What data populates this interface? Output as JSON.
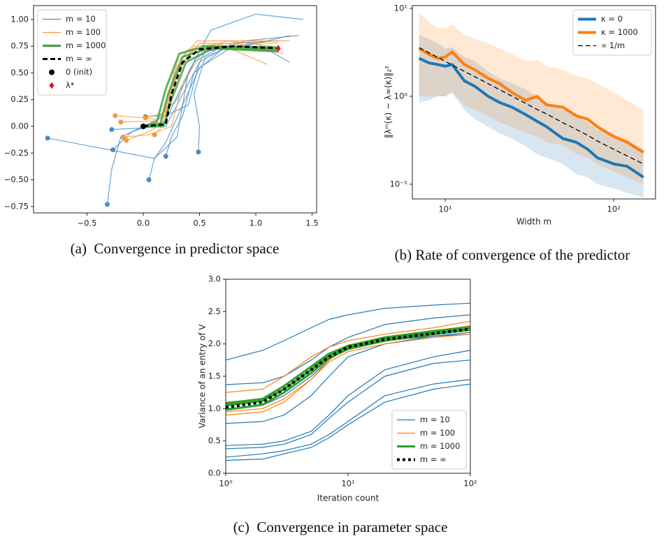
{
  "chart_data": [
    {
      "type": "line",
      "caption": "(a)  Convergence in predictor space",
      "xlim": [
        -0.975,
        1.54
      ],
      "ylim": [
        -0.81,
        1.13
      ],
      "xticks": [
        {
          "value": -0.5,
          "label": "−0.5"
        },
        {
          "value": 0,
          "label": "0.0"
        },
        0.5,
        {
          "value": 1,
          "label": "1.0"
        },
        1.5
      ],
      "yticks": [
        {
          "value": -0.75,
          "label": "−0.75"
        },
        {
          "value": -0.5,
          "label": "−0.50"
        },
        {
          "value": -0.25,
          "label": "−0.25"
        },
        {
          "value": 0,
          "label": "0.00"
        },
        0.25,
        {
          "value": 0.5,
          "label": "0.50"
        },
        0.75,
        {
          "value": 1,
          "label": "1.00"
        }
      ],
      "legend": "upper left",
      "series": [
        {
          "name": "m = 10",
          "color": "#4a8cc4",
          "linewidth": 1.2,
          "markers": "start",
          "lines": [
            {
              "x": [
                -0.85,
                -0.4,
                0.1,
                0.3,
                0.4,
                0.6,
                1.0,
                1.42
              ],
              "y": [
                -0.11,
                -0.2,
                -0.3,
                -0.1,
                0.5,
                0.9,
                1.05,
                1.0
              ]
            },
            {
              "x": [
                -0.32,
                -0.28,
                -0.2,
                0.1,
                0.4,
                0.5,
                0.8,
                1.2
              ],
              "y": [
                -0.73,
                -0.4,
                -0.1,
                0.05,
                0.2,
                0.6,
                0.78,
                0.8
              ]
            },
            {
              "x": [
                -0.27,
                -0.1,
                0.2,
                0.35,
                0.5,
                0.9,
                1.3
              ],
              "y": [
                -0.22,
                -0.05,
                0.05,
                0.4,
                0.7,
                0.75,
                0.85
              ]
            },
            {
              "x": [
                0.05,
                0.1,
                0.2,
                0.35,
                0.5,
                0.8,
                1.2
              ],
              "y": [
                -0.5,
                -0.3,
                -0.15,
                0.2,
                0.55,
                0.75,
                0.7
              ]
            },
            {
              "x": [
                0.2,
                0.25,
                0.35,
                0.45,
                0.7,
                1.1
              ],
              "y": [
                -0.28,
                -0.1,
                0.1,
                0.5,
                0.72,
                0.72
              ]
            },
            {
              "x": [
                0.49,
                0.5,
                0.45,
                0.55,
                0.9,
                1.38
              ],
              "y": [
                -0.24,
                0.0,
                0.3,
                0.65,
                0.8,
                0.85
              ]
            },
            {
              "x": [
                -0.28,
                -0.1,
                0.2,
                0.35,
                0.55,
                1.0,
                1.3
              ],
              "y": [
                -0.03,
                -0.02,
                0.0,
                0.3,
                0.7,
                0.78,
                0.6
              ]
            },
            {
              "x": [
                0.02,
                0.15,
                0.3,
                0.45,
                0.7,
                1.05
              ],
              "y": [
                0.09,
                0.1,
                0.25,
                0.6,
                0.75,
                0.74
              ]
            }
          ]
        },
        {
          "name": "m = 100",
          "color": "#f5973a",
          "linewidth": 1.2,
          "markers": "start",
          "lines": [
            {
              "x": [
                -0.2,
                0.1,
                0.2,
                0.3,
                0.45,
                0.8,
                1.2
              ],
              "y": [
                0.04,
                0.05,
                0.1,
                0.5,
                0.75,
                0.78,
                0.78
              ]
            },
            {
              "x": [
                -0.25,
                0.0,
                0.18,
                0.28,
                0.42,
                0.75,
                1.15
              ],
              "y": [
                0.1,
                0.08,
                0.12,
                0.45,
                0.7,
                0.8,
                0.75
              ]
            },
            {
              "x": [
                -0.15,
                0.05,
                0.2,
                0.32,
                0.5,
                0.85,
                1.25
              ],
              "y": [
                -0.13,
                -0.05,
                0.05,
                0.55,
                0.78,
                0.77,
                0.68
              ]
            },
            {
              "x": [
                0.1,
                0.15,
                0.22,
                0.3,
                0.48,
                0.9,
                1.3
              ],
              "y": [
                -0.08,
                -0.02,
                0.2,
                0.6,
                0.8,
                0.8,
                0.8
              ]
            },
            {
              "x": [
                0.02,
                0.12,
                0.2,
                0.27,
                0.4,
                0.7,
                1.1
              ],
              "y": [
                0.08,
                0.06,
                0.15,
                0.5,
                0.72,
                0.76,
                0.58
              ]
            },
            {
              "x": [
                -0.18,
                0.05,
                0.25,
                0.35,
                0.55,
                0.9,
                1.2
              ],
              "y": [
                -0.1,
                -0.08,
                0.0,
                0.4,
                0.74,
                0.72,
                0.7
              ]
            }
          ]
        },
        {
          "name": "m = 1000",
          "color": "#3aa03a",
          "linewidth": 3,
          "lines": [
            {
              "x": [
                0,
                0.15,
                0.22,
                0.35,
                0.6,
                1.2
              ],
              "y": [
                0,
                0.02,
                0.3,
                0.65,
                0.74,
                0.72
              ]
            },
            {
              "x": [
                0,
                0.18,
                0.25,
                0.38,
                0.62,
                1.2
              ],
              "y": [
                0,
                0.0,
                0.25,
                0.6,
                0.73,
                0.7
              ]
            },
            {
              "x": [
                0,
                0.12,
                0.2,
                0.32,
                0.55,
                1.18
              ],
              "y": [
                0,
                0.04,
                0.35,
                0.68,
                0.75,
                0.74
              ]
            }
          ]
        },
        {
          "name": "m = ∞",
          "color": "#000000",
          "linewidth": 3,
          "dash": "dashed",
          "lines": [
            {
              "x": [
                0,
                0.2,
                0.25,
                0.35,
                0.5,
                0.8,
                1.2
              ],
              "y": [
                0,
                0.02,
                0.3,
                0.6,
                0.72,
                0.75,
                0.73
              ]
            }
          ]
        }
      ],
      "points": [
        {
          "name": "0 (init)",
          "color": "#000000",
          "marker": "circle",
          "x": 0,
          "y": 0
        },
        {
          "name": "λ*",
          "color": "#e8131b",
          "marker": "diamond",
          "x": 1.2,
          "y": 0.73
        }
      ]
    },
    {
      "type": "line",
      "caption": "(b) Rate of convergence of the predictor",
      "xlabel": "Width m",
      "ylabel": "‖λᵐ(κ) − λ∞(κ)‖₂²",
      "xscale": "log",
      "yscale": "log",
      "xlim": [
        6.38,
        177
      ],
      "ylim": [
        0.068,
        10.76
      ],
      "xticks": [
        {
          "value": 10,
          "label": "10¹"
        },
        {
          "value": 100,
          "label": "10²"
        }
      ],
      "yticks": [
        {
          "value": 0.1,
          "label": "10⁻¹"
        },
        {
          "value": 1,
          "label": "10⁰"
        },
        {
          "value": 10,
          "label": "10¹"
        }
      ],
      "legend": "upper right",
      "x": [
        7,
        8,
        9,
        10,
        11,
        13,
        15,
        18,
        21,
        25,
        30,
        35,
        40,
        50,
        60,
        70,
        80,
        100,
        120,
        150
      ],
      "series": [
        {
          "name": "κ = 0",
          "color": "#1f77b4",
          "linewidth": 4,
          "values": [
            2.7,
            2.4,
            2.3,
            2.2,
            2.3,
            1.5,
            1.3,
            1.0,
            0.85,
            0.75,
            0.62,
            0.52,
            0.45,
            0.33,
            0.3,
            0.25,
            0.2,
            0.17,
            0.16,
            0.12
          ],
          "lower": [
            0.85,
            0.9,
            1.0,
            1.0,
            1.1,
            0.7,
            0.55,
            0.45,
            0.38,
            0.33,
            0.27,
            0.22,
            0.2,
            0.17,
            0.13,
            0.12,
            0.1,
            0.09,
            0.08,
            0.07
          ],
          "upper": [
            5,
            4.5,
            4,
            3.5,
            3.6,
            2.8,
            2.5,
            1.9,
            1.6,
            1.4,
            1.2,
            1.0,
            0.85,
            0.7,
            0.6,
            0.5,
            0.42,
            0.35,
            0.32,
            0.25
          ]
        },
        {
          "name": "κ = 1000",
          "color": "#ff7f0e",
          "linewidth": 4,
          "values": [
            3.5,
            3.0,
            2.7,
            2.8,
            3.2,
            2.3,
            2.0,
            1.6,
            1.4,
            1.1,
            0.9,
            1.0,
            0.8,
            0.75,
            0.6,
            0.55,
            0.45,
            0.35,
            0.3,
            0.23
          ],
          "lower": [
            1.0,
            1.0,
            1.0,
            1.0,
            1.1,
            0.8,
            0.7,
            0.6,
            0.5,
            0.45,
            0.38,
            0.35,
            0.3,
            0.28,
            0.22,
            0.2,
            0.17,
            0.14,
            0.12,
            0.1
          ],
          "upper": [
            9,
            7,
            6,
            6,
            6.5,
            5,
            4.5,
            4,
            3.5,
            3,
            2.5,
            2.6,
            2.2,
            2,
            1.7,
            1.6,
            1.4,
            1.1,
            0.9,
            0.7
          ]
        },
        {
          "name": "∝ 1/m",
          "color": "#000000",
          "linewidth": 1.3,
          "dash": "dashed",
          "values": [
            3.57,
            3.13,
            2.78,
            2.5,
            2.27,
            1.92,
            1.67,
            1.39,
            1.19,
            1.0,
            0.83,
            0.71,
            0.63,
            0.5,
            0.42,
            0.36,
            0.31,
            0.25,
            0.21,
            0.17
          ]
        }
      ]
    },
    {
      "type": "line",
      "caption": "(c)  Convergence in parameter space",
      "xlabel": "Iteration count",
      "ylabel": "Variance of an entry of V",
      "xscale": "log",
      "xlim": [
        1,
        100
      ],
      "ylim": [
        0,
        3
      ],
      "xticks": [
        {
          "value": 1,
          "label": "10⁰"
        },
        {
          "value": 10,
          "label": "10¹"
        },
        {
          "value": 100,
          "label": "10²"
        }
      ],
      "yticks": [
        {
          "value": 0,
          "label": "0.0"
        },
        0.5,
        {
          "value": 1,
          "label": "1.0"
        },
        1.5,
        {
          "value": 2,
          "label": "2.0"
        },
        2.5,
        {
          "value": 3,
          "label": "3.0"
        }
      ],
      "legend": "lower right",
      "x": [
        1,
        2,
        3,
        5,
        7,
        10,
        20,
        50,
        100
      ],
      "series": [
        {
          "name": "m = 10",
          "color": "#1f77b4",
          "linewidth": 1.2,
          "lines": [
            [
              1.75,
              1.9,
              2.05,
              2.25,
              2.38,
              2.45,
              2.55,
              2.6,
              2.63
            ],
            [
              1.37,
              1.4,
              1.5,
              1.75,
              1.95,
              2.1,
              2.3,
              2.4,
              2.45
            ],
            [
              0.77,
              0.8,
              0.9,
              1.2,
              1.5,
              1.8,
              2.0,
              2.12,
              2.18
            ],
            [
              0.43,
              0.45,
              0.5,
              0.65,
              0.9,
              1.2,
              1.6,
              1.8,
              1.9
            ],
            [
              0.38,
              0.4,
              0.45,
              0.6,
              0.85,
              1.1,
              1.5,
              1.7,
              1.75
            ],
            [
              0.25,
              0.3,
              0.35,
              0.45,
              0.6,
              0.8,
              1.2,
              1.38,
              1.45
            ],
            [
              0.2,
              0.22,
              0.3,
              0.4,
              0.55,
              0.75,
              1.1,
              1.3,
              1.38
            ],
            [
              1.0,
              1.05,
              1.2,
              1.5,
              1.75,
              1.95,
              2.05,
              2.12,
              2.15
            ]
          ]
        },
        {
          "name": "m = 100",
          "color": "#ff7f0e",
          "linewidth": 1.2,
          "lines": [
            [
              1.25,
              1.3,
              1.5,
              1.8,
              1.95,
              2.05,
              2.15,
              2.25,
              2.35
            ],
            [
              0.9,
              0.95,
              1.1,
              1.45,
              1.75,
              1.95,
              2.1,
              2.2,
              2.25
            ],
            [
              1.1,
              1.15,
              1.3,
              1.6,
              1.85,
              1.98,
              2.1,
              2.2,
              2.28
            ],
            [
              0.95,
              1.0,
              1.15,
              1.45,
              1.72,
              1.88,
              2.0,
              2.1,
              2.15
            ]
          ]
        },
        {
          "name": "m = 1000",
          "color": "#2ca02c",
          "linewidth": 3,
          "lines": [
            [
              1.05,
              1.12,
              1.3,
              1.6,
              1.82,
              1.95,
              2.08,
              2.17,
              2.24
            ],
            [
              0.98,
              1.06,
              1.25,
              1.55,
              1.78,
              1.92,
              2.05,
              2.15,
              2.22
            ],
            [
              1.08,
              1.15,
              1.35,
              1.65,
              1.85,
              1.97,
              2.1,
              2.2,
              2.26
            ]
          ]
        },
        {
          "name": "m = ∞",
          "color": "#000000",
          "linewidth": 4,
          "dash": "dotted",
          "lines": [
            [
              1.02,
              1.1,
              1.3,
              1.6,
              1.8,
              1.95,
              2.07,
              2.16,
              2.23
            ]
          ]
        }
      ]
    }
  ]
}
